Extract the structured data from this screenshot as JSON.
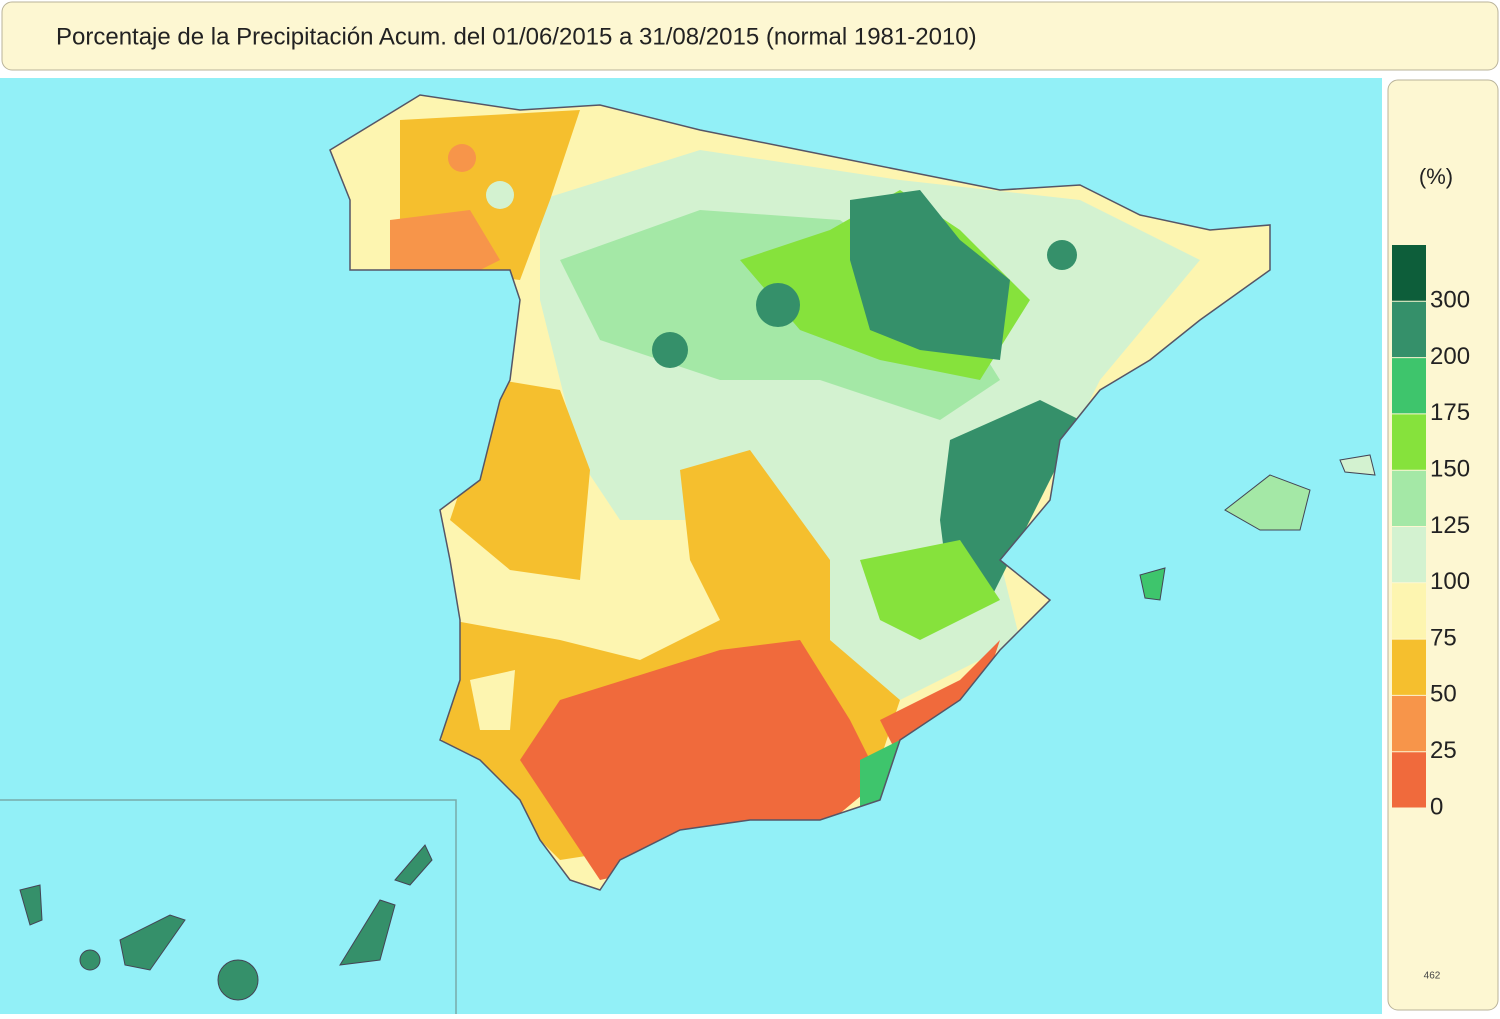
{
  "header": {
    "title": "Porcentaje de la Precipitación Acum. del 01/06/2015 a  31/08/2015  (normal 1981-2010)"
  },
  "legend": {
    "unit": "(%)",
    "ticks": [
      0,
      25,
      50,
      75,
      100,
      125,
      150,
      175,
      200,
      300
    ],
    "colors": [
      "#f06a3c",
      "#f7954a",
      "#f5bf2e",
      "#fdf5b0",
      "#d3f2d0",
      "#a4e8a6",
      "#86e23c",
      "#3ec56c",
      "#35906a",
      "#0d5e3a"
    ]
  },
  "footer": {
    "code": "462"
  }
}
